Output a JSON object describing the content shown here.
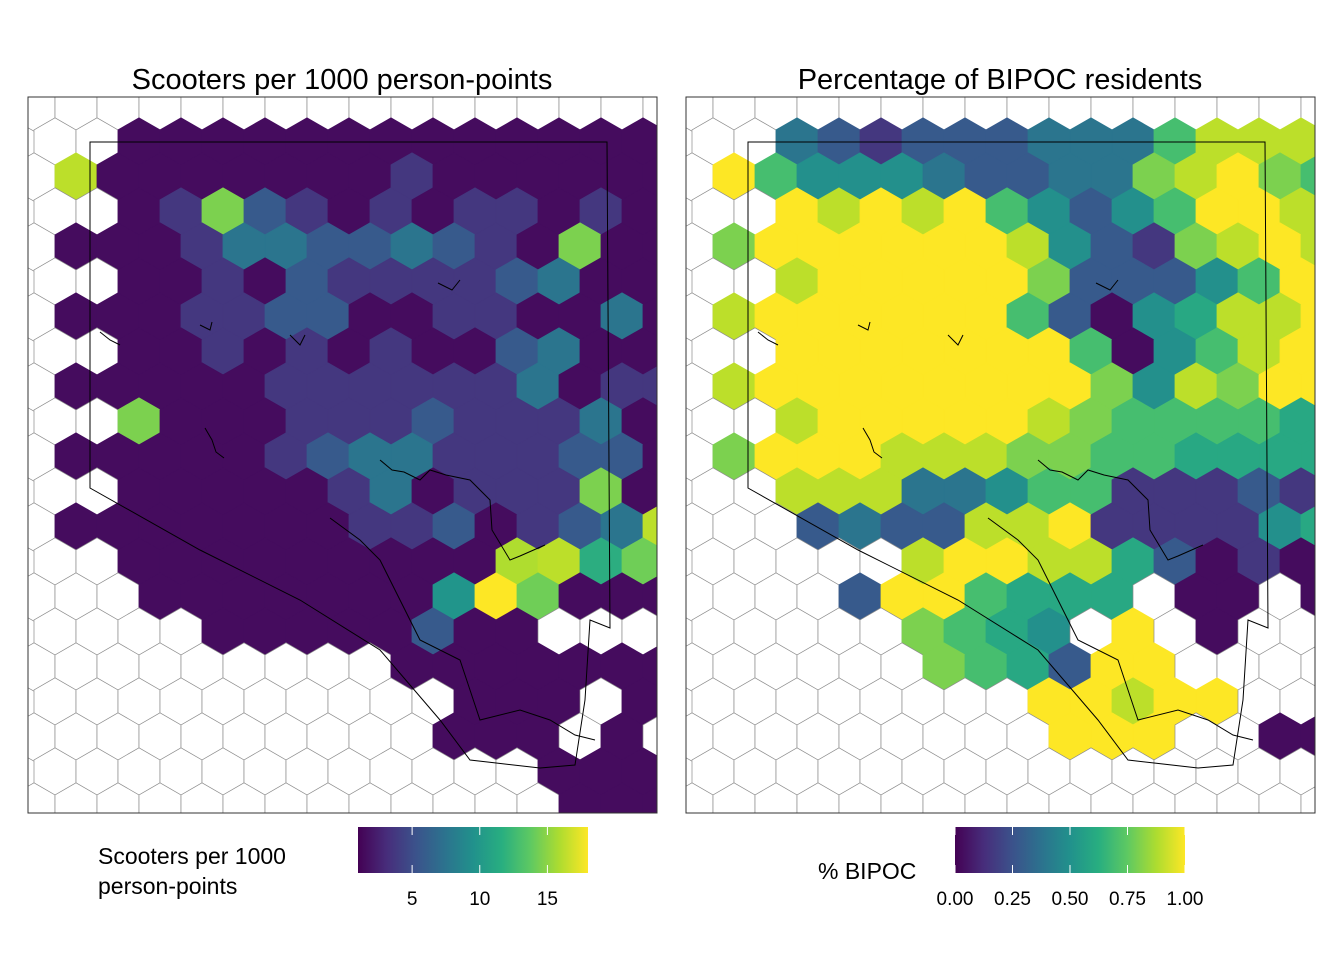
{
  "chart_data": [
    {
      "type": "heatmap",
      "title": "Scooters per 1000 person-points",
      "legend": {
        "title_lines": [
          "Scooters per 1000",
          "person-points"
        ],
        "placement": "bottom",
        "range": [
          1,
          18
        ],
        "ticks": [
          5,
          10,
          15
        ],
        "tick_labels": [
          "5",
          "10",
          "15"
        ]
      },
      "grid": false,
      "hex_values": [
        "....................",
        "..11111111111111111.",
        ".911111112111111111.",
        "..1283212122121111..",
        ".1112443343218111111",
        "..1121322223411111..",
        ".1112233112211411111",
        "..1121212113411111..",
        ".1111122222241221311",
        "..8111222322241211..",
        ".1111123442223311121",
        "..11111241222811211.",
        ".111111122312349111.",
        "..111111111E9CD1111.",
        "...1111111BFD111211.",
        "....11111311.....D..",
        ".........1111111....",
        "..........111.111...",
        "..........111.1.....",
        "............11111...",
        ".............1111...",
        "...................."
      ]
    },
    {
      "type": "heatmap",
      "title": "Percentage of BIPOC residents",
      "legend": {
        "title_lines": [
          "% BIPOC"
        ],
        "placement": "bottom",
        "range": [
          0,
          1
        ],
        "ticks": [
          0,
          0.25,
          0.5,
          0.75,
          1
        ],
        "tick_labels": [
          "0.00",
          "0.25",
          "0.50",
          "0.75",
          "1.00"
        ]
      },
      "grid": false,
      "hex_values": [
        "....................",
        "..432333444799955...",
        ".A75554334489A87666.",
        "..A9A9A75357AA9AA6..",
        ".8AAAAAA953289A99A8.",
        "..9AAAAA833357A9A9..",
        ".9AAAAAA7315699AA99.",
        "..AAAAAAA71579A99A..",
        ".9AAAAAAAA8598AA998.",
        "..9AAAAA9877776776..",
        ".8AAA999887766664579",
        "..99944577222322687.",
        "...343399A22225677..",
        ".....9AA996312128...",
        "....3AA7666.11.1....",
        ".....8765.A.1.......",
        "......8763AA........",
        "........AA9AA.......",
        ".........AAA..11....",
        "....................",
        "....................",
        "...................."
      ]
    }
  ]
}
